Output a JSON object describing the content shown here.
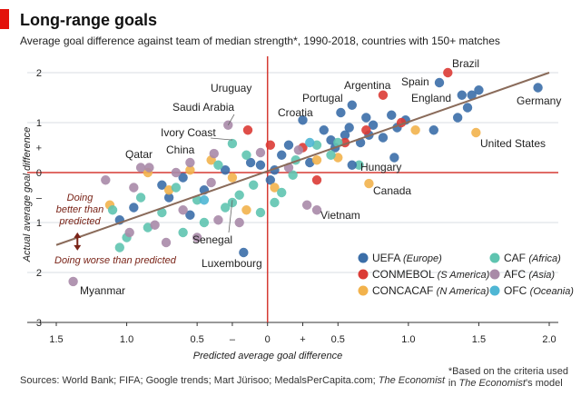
{
  "title": "Long-range goals",
  "subtitle": "Average goal difference against team of median strength*, 1990-2018, countries with 150+ matches",
  "source_prefix": "Sources: World Bank; FIFA; Google trends; Mart Jürisoo; MedalsPerCapita.com; ",
  "source_suffix": "The Economist",
  "footnote_line1": "*Based on the criteria used",
  "footnote_line2_prefix": "in ",
  "footnote_line2_italic": "The Economist",
  "footnote_line2_suffix": "’s model",
  "colors": {
    "UEFA": "#3b6ea8",
    "CONMEBOL": "#db3b35",
    "CONCACAF": "#f2b24c",
    "CAF": "#5fc4b0",
    "AFC": "#a98aa8",
    "OFC": "#4fb6d4",
    "axis": "#d53a33",
    "trend": "#8a6b5a",
    "grid": "#d8dde3",
    "arrow": "#7a2418"
  },
  "chart_data": {
    "type": "scatter",
    "xlabel": "Predicted average goal difference",
    "ylabel": "Actual average goal difference",
    "xlim": [
      -1.5,
      2.0
    ],
    "ylim": [
      -3,
      2.2
    ],
    "x_ticks": [
      {
        "value": -1.5,
        "label": "1.5"
      },
      {
        "value": -1.0,
        "label": "1.0"
      },
      {
        "value": -0.5,
        "label": "0.5"
      },
      {
        "value": -0.25,
        "label": "–"
      },
      {
        "value": 0,
        "label": "0"
      },
      {
        "value": 0.25,
        "label": "+"
      },
      {
        "value": 0.5,
        "label": "0.5"
      },
      {
        "value": 1.0,
        "label": "1.0"
      },
      {
        "value": 1.5,
        "label": "1.5"
      },
      {
        "value": 2.0,
        "label": "2.0"
      }
    ],
    "y_ticks": [
      {
        "value": 2,
        "label": "2"
      },
      {
        "value": 1,
        "label": "1"
      },
      {
        "value": 0.5,
        "label": "+"
      },
      {
        "value": 0,
        "label": "0"
      },
      {
        "value": -0.5,
        "label": "–"
      },
      {
        "value": -1,
        "label": "1"
      },
      {
        "value": -2,
        "label": "2"
      },
      {
        "value": -3,
        "label": "3"
      }
    ],
    "trend_line": {
      "x": [
        -1.5,
        2.0
      ],
      "y": [
        -1.45,
        2.0
      ]
    },
    "quadrant_labels": {
      "above": "Doing better than predicted",
      "below": "Doing worse than predicted"
    },
    "legend": [
      {
        "key": "UEFA",
        "name": "UEFA",
        "region": "(Europe)"
      },
      {
        "key": "CONMEBOL",
        "name": "CONMEBOL",
        "region": "(S America)"
      },
      {
        "key": "CONCACAF",
        "name": "CONCACAF",
        "region": "(N America)"
      },
      {
        "key": "CAF",
        "name": "CAF",
        "region": "(Africa)"
      },
      {
        "key": "AFC",
        "name": "AFC",
        "region": "(Asia)"
      },
      {
        "key": "OFC",
        "name": "OFC",
        "region": "(Oceania)"
      }
    ],
    "labeled_points": [
      {
        "name": "Brazil",
        "conf": "CONMEBOL",
        "x": 1.28,
        "y": 2.0
      },
      {
        "name": "Spain",
        "conf": "UEFA",
        "x": 1.22,
        "y": 1.8
      },
      {
        "name": "Argentina",
        "conf": "CONMEBOL",
        "x": 0.82,
        "y": 1.55
      },
      {
        "name": "England",
        "conf": "UEFA",
        "x": 1.38,
        "y": 1.55
      },
      {
        "name": "Germany",
        "conf": "UEFA",
        "x": 1.92,
        "y": 1.7
      },
      {
        "name": "Portugal",
        "conf": "UEFA",
        "x": 0.6,
        "y": 1.35
      },
      {
        "name": "Croatia",
        "conf": "UEFA",
        "x": 0.25,
        "y": 1.05
      },
      {
        "name": "United States",
        "conf": "CONCACAF",
        "x": 1.48,
        "y": 0.8
      },
      {
        "name": "Hungary",
        "conf": "UEFA",
        "x": 0.6,
        "y": 0.15
      },
      {
        "name": "Canada",
        "conf": "CONCACAF",
        "x": 0.72,
        "y": -0.22
      },
      {
        "name": "Vietnam",
        "conf": "AFC",
        "x": 0.35,
        "y": -0.75
      },
      {
        "name": "Uruguay",
        "conf": "CONMEBOL",
        "x": -0.14,
        "y": 0.85
      },
      {
        "name": "Saudi Arabia",
        "conf": "AFC",
        "x": -0.28,
        "y": 0.95
      },
      {
        "name": "Ivory Coast",
        "conf": "CAF",
        "x": -0.25,
        "y": 0.58
      },
      {
        "name": "China",
        "conf": "AFC",
        "x": -0.38,
        "y": 0.38
      },
      {
        "name": "Qatar",
        "conf": "AFC",
        "x": -0.9,
        "y": 0.1
      },
      {
        "name": "Senegal",
        "conf": "CAF",
        "x": -0.25,
        "y": -0.6
      },
      {
        "name": "Luxembourg",
        "conf": "UEFA",
        "x": -0.17,
        "y": -1.6
      },
      {
        "name": "Myanmar",
        "conf": "AFC",
        "x": -1.38,
        "y": -2.18
      }
    ],
    "points": [
      {
        "conf": "UEFA",
        "x": 1.5,
        "y": 1.65
      },
      {
        "conf": "UEFA",
        "x": 1.45,
        "y": 1.55
      },
      {
        "conf": "UEFA",
        "x": 1.42,
        "y": 1.3
      },
      {
        "conf": "UEFA",
        "x": 1.35,
        "y": 1.1
      },
      {
        "conf": "UEFA",
        "x": 1.18,
        "y": 0.85
      },
      {
        "conf": "UEFA",
        "x": 0.98,
        "y": 1.05
      },
      {
        "conf": "UEFA",
        "x": 0.92,
        "y": 0.9
      },
      {
        "conf": "UEFA",
        "x": 0.88,
        "y": 1.15
      },
      {
        "conf": "UEFA",
        "x": 0.82,
        "y": 0.7
      },
      {
        "conf": "UEFA",
        "x": 0.75,
        "y": 0.95
      },
      {
        "conf": "UEFA",
        "x": 0.72,
        "y": 0.75
      },
      {
        "conf": "UEFA",
        "x": 0.7,
        "y": 1.1
      },
      {
        "conf": "UEFA",
        "x": 0.66,
        "y": 0.6
      },
      {
        "conf": "UEFA",
        "x": 0.58,
        "y": 0.9
      },
      {
        "conf": "UEFA",
        "x": 0.55,
        "y": 0.75
      },
      {
        "conf": "UEFA",
        "x": 0.52,
        "y": 1.2
      },
      {
        "conf": "UEFA",
        "x": 0.48,
        "y": 0.5
      },
      {
        "conf": "UEFA",
        "x": 0.45,
        "y": 0.65
      },
      {
        "conf": "UEFA",
        "x": 0.4,
        "y": 0.85
      },
      {
        "conf": "UEFA",
        "x": 0.15,
        "y": 0.55
      },
      {
        "conf": "UEFA",
        "x": 0.1,
        "y": 0.35
      },
      {
        "conf": "UEFA",
        "x": 0.05,
        "y": 0.05
      },
      {
        "conf": "UEFA",
        "x": 0.02,
        "y": -0.15
      },
      {
        "conf": "UEFA",
        "x": -0.05,
        "y": 0.15
      },
      {
        "conf": "UEFA",
        "x": -0.12,
        "y": 0.2
      },
      {
        "conf": "UEFA",
        "x": -0.3,
        "y": 0.05
      },
      {
        "conf": "UEFA",
        "x": -0.45,
        "y": -0.35
      },
      {
        "conf": "UEFA",
        "x": -0.6,
        "y": -0.1
      },
      {
        "conf": "UEFA",
        "x": -0.7,
        "y": -0.5
      },
      {
        "conf": "UEFA",
        "x": -0.75,
        "y": -0.25
      },
      {
        "conf": "UEFA",
        "x": -0.95,
        "y": -0.7
      },
      {
        "conf": "UEFA",
        "x": -1.05,
        "y": -0.95
      },
      {
        "conf": "UEFA",
        "x": -0.55,
        "y": -0.85
      },
      {
        "conf": "UEFA",
        "x": 0.9,
        "y": 0.3
      },
      {
        "conf": "UEFA",
        "x": 0.3,
        "y": 0.2
      },
      {
        "conf": "CONMEBOL",
        "x": 0.95,
        "y": 1.0
      },
      {
        "conf": "CONMEBOL",
        "x": 0.7,
        "y": 0.85
      },
      {
        "conf": "CONMEBOL",
        "x": 0.55,
        "y": 0.6
      },
      {
        "conf": "CONMEBOL",
        "x": 0.25,
        "y": 0.5
      },
      {
        "conf": "CONMEBOL",
        "x": 0.02,
        "y": 0.55
      },
      {
        "conf": "CONMEBOL",
        "x": 0.35,
        "y": -0.15
      },
      {
        "conf": "CONCACAF",
        "x": 1.05,
        "y": 0.85
      },
      {
        "conf": "CONCACAF",
        "x": 0.5,
        "y": 0.3
      },
      {
        "conf": "CONCACAF",
        "x": 0.35,
        "y": 0.25
      },
      {
        "conf": "CONCACAF",
        "x": 0.05,
        "y": -0.3
      },
      {
        "conf": "CONCACAF",
        "x": -0.25,
        "y": -0.1
      },
      {
        "conf": "CONCACAF",
        "x": -0.4,
        "y": 0.25
      },
      {
        "conf": "CONCACAF",
        "x": -0.55,
        "y": 0.05
      },
      {
        "conf": "CONCACAF",
        "x": -0.7,
        "y": -0.35
      },
      {
        "conf": "CONCACAF",
        "x": -0.85,
        "y": 0.0
      },
      {
        "conf": "CONCACAF",
        "x": -0.15,
        "y": -0.75
      },
      {
        "conf": "CONCACAF",
        "x": -1.12,
        "y": -0.65
      },
      {
        "conf": "CAF",
        "x": 0.5,
        "y": 0.6
      },
      {
        "conf": "CAF",
        "x": 0.45,
        "y": 0.35
      },
      {
        "conf": "CAF",
        "x": 0.35,
        "y": 0.55
      },
      {
        "conf": "CAF",
        "x": 0.2,
        "y": 0.25
      },
      {
        "conf": "CAF",
        "x": 0.18,
        "y": -0.05
      },
      {
        "conf": "CAF",
        "x": 0.1,
        "y": -0.4
      },
      {
        "conf": "CAF",
        "x": 0.05,
        "y": -0.6
      },
      {
        "conf": "CAF",
        "x": -0.05,
        "y": -0.8
      },
      {
        "conf": "CAF",
        "x": -0.1,
        "y": -0.25
      },
      {
        "conf": "CAF",
        "x": -0.15,
        "y": 0.35
      },
      {
        "conf": "CAF",
        "x": -0.2,
        "y": -0.45
      },
      {
        "conf": "CAF",
        "x": -0.3,
        "y": -0.7
      },
      {
        "conf": "CAF",
        "x": -0.35,
        "y": 0.15
      },
      {
        "conf": "CAF",
        "x": -0.5,
        "y": -0.55
      },
      {
        "conf": "CAF",
        "x": -0.6,
        "y": -1.2
      },
      {
        "conf": "CAF",
        "x": -0.65,
        "y": -0.3
      },
      {
        "conf": "CAF",
        "x": -0.75,
        "y": -0.8
      },
      {
        "conf": "CAF",
        "x": -0.85,
        "y": -1.1
      },
      {
        "conf": "CAF",
        "x": -0.9,
        "y": -0.5
      },
      {
        "conf": "CAF",
        "x": -1.0,
        "y": -1.3
      },
      {
        "conf": "CAF",
        "x": -1.05,
        "y": -1.5
      },
      {
        "conf": "CAF",
        "x": -1.1,
        "y": -0.75
      },
      {
        "conf": "CAF",
        "x": -0.45,
        "y": -1.0
      },
      {
        "conf": "CAF",
        "x": 0.65,
        "y": 0.15
      },
      {
        "conf": "AFC",
        "x": 0.28,
        "y": -0.65
      },
      {
        "conf": "AFC",
        "x": 0.22,
        "y": 0.45
      },
      {
        "conf": "AFC",
        "x": 0.15,
        "y": 0.1
      },
      {
        "conf": "AFC",
        "x": -0.05,
        "y": 0.4
      },
      {
        "conf": "AFC",
        "x": -0.2,
        "y": -1.0
      },
      {
        "conf": "AFC",
        "x": -0.35,
        "y": -0.95
      },
      {
        "conf": "AFC",
        "x": -0.4,
        "y": -0.2
      },
      {
        "conf": "AFC",
        "x": -0.5,
        "y": -1.3
      },
      {
        "conf": "AFC",
        "x": -0.55,
        "y": 0.2
      },
      {
        "conf": "AFC",
        "x": -0.6,
        "y": -0.75
      },
      {
        "conf": "AFC",
        "x": -0.72,
        "y": -1.4
      },
      {
        "conf": "AFC",
        "x": -0.8,
        "y": -1.05
      },
      {
        "conf": "AFC",
        "x": -0.84,
        "y": 0.1
      },
      {
        "conf": "AFC",
        "x": -0.95,
        "y": -0.3
      },
      {
        "conf": "AFC",
        "x": -1.15,
        "y": -0.15
      },
      {
        "conf": "AFC",
        "x": -0.98,
        "y": -1.2
      },
      {
        "conf": "AFC",
        "x": -0.65,
        "y": 0.0
      },
      {
        "conf": "OFC",
        "x": -0.45,
        "y": -0.55
      },
      {
        "conf": "OFC",
        "x": 0.3,
        "y": 0.6
      }
    ]
  }
}
